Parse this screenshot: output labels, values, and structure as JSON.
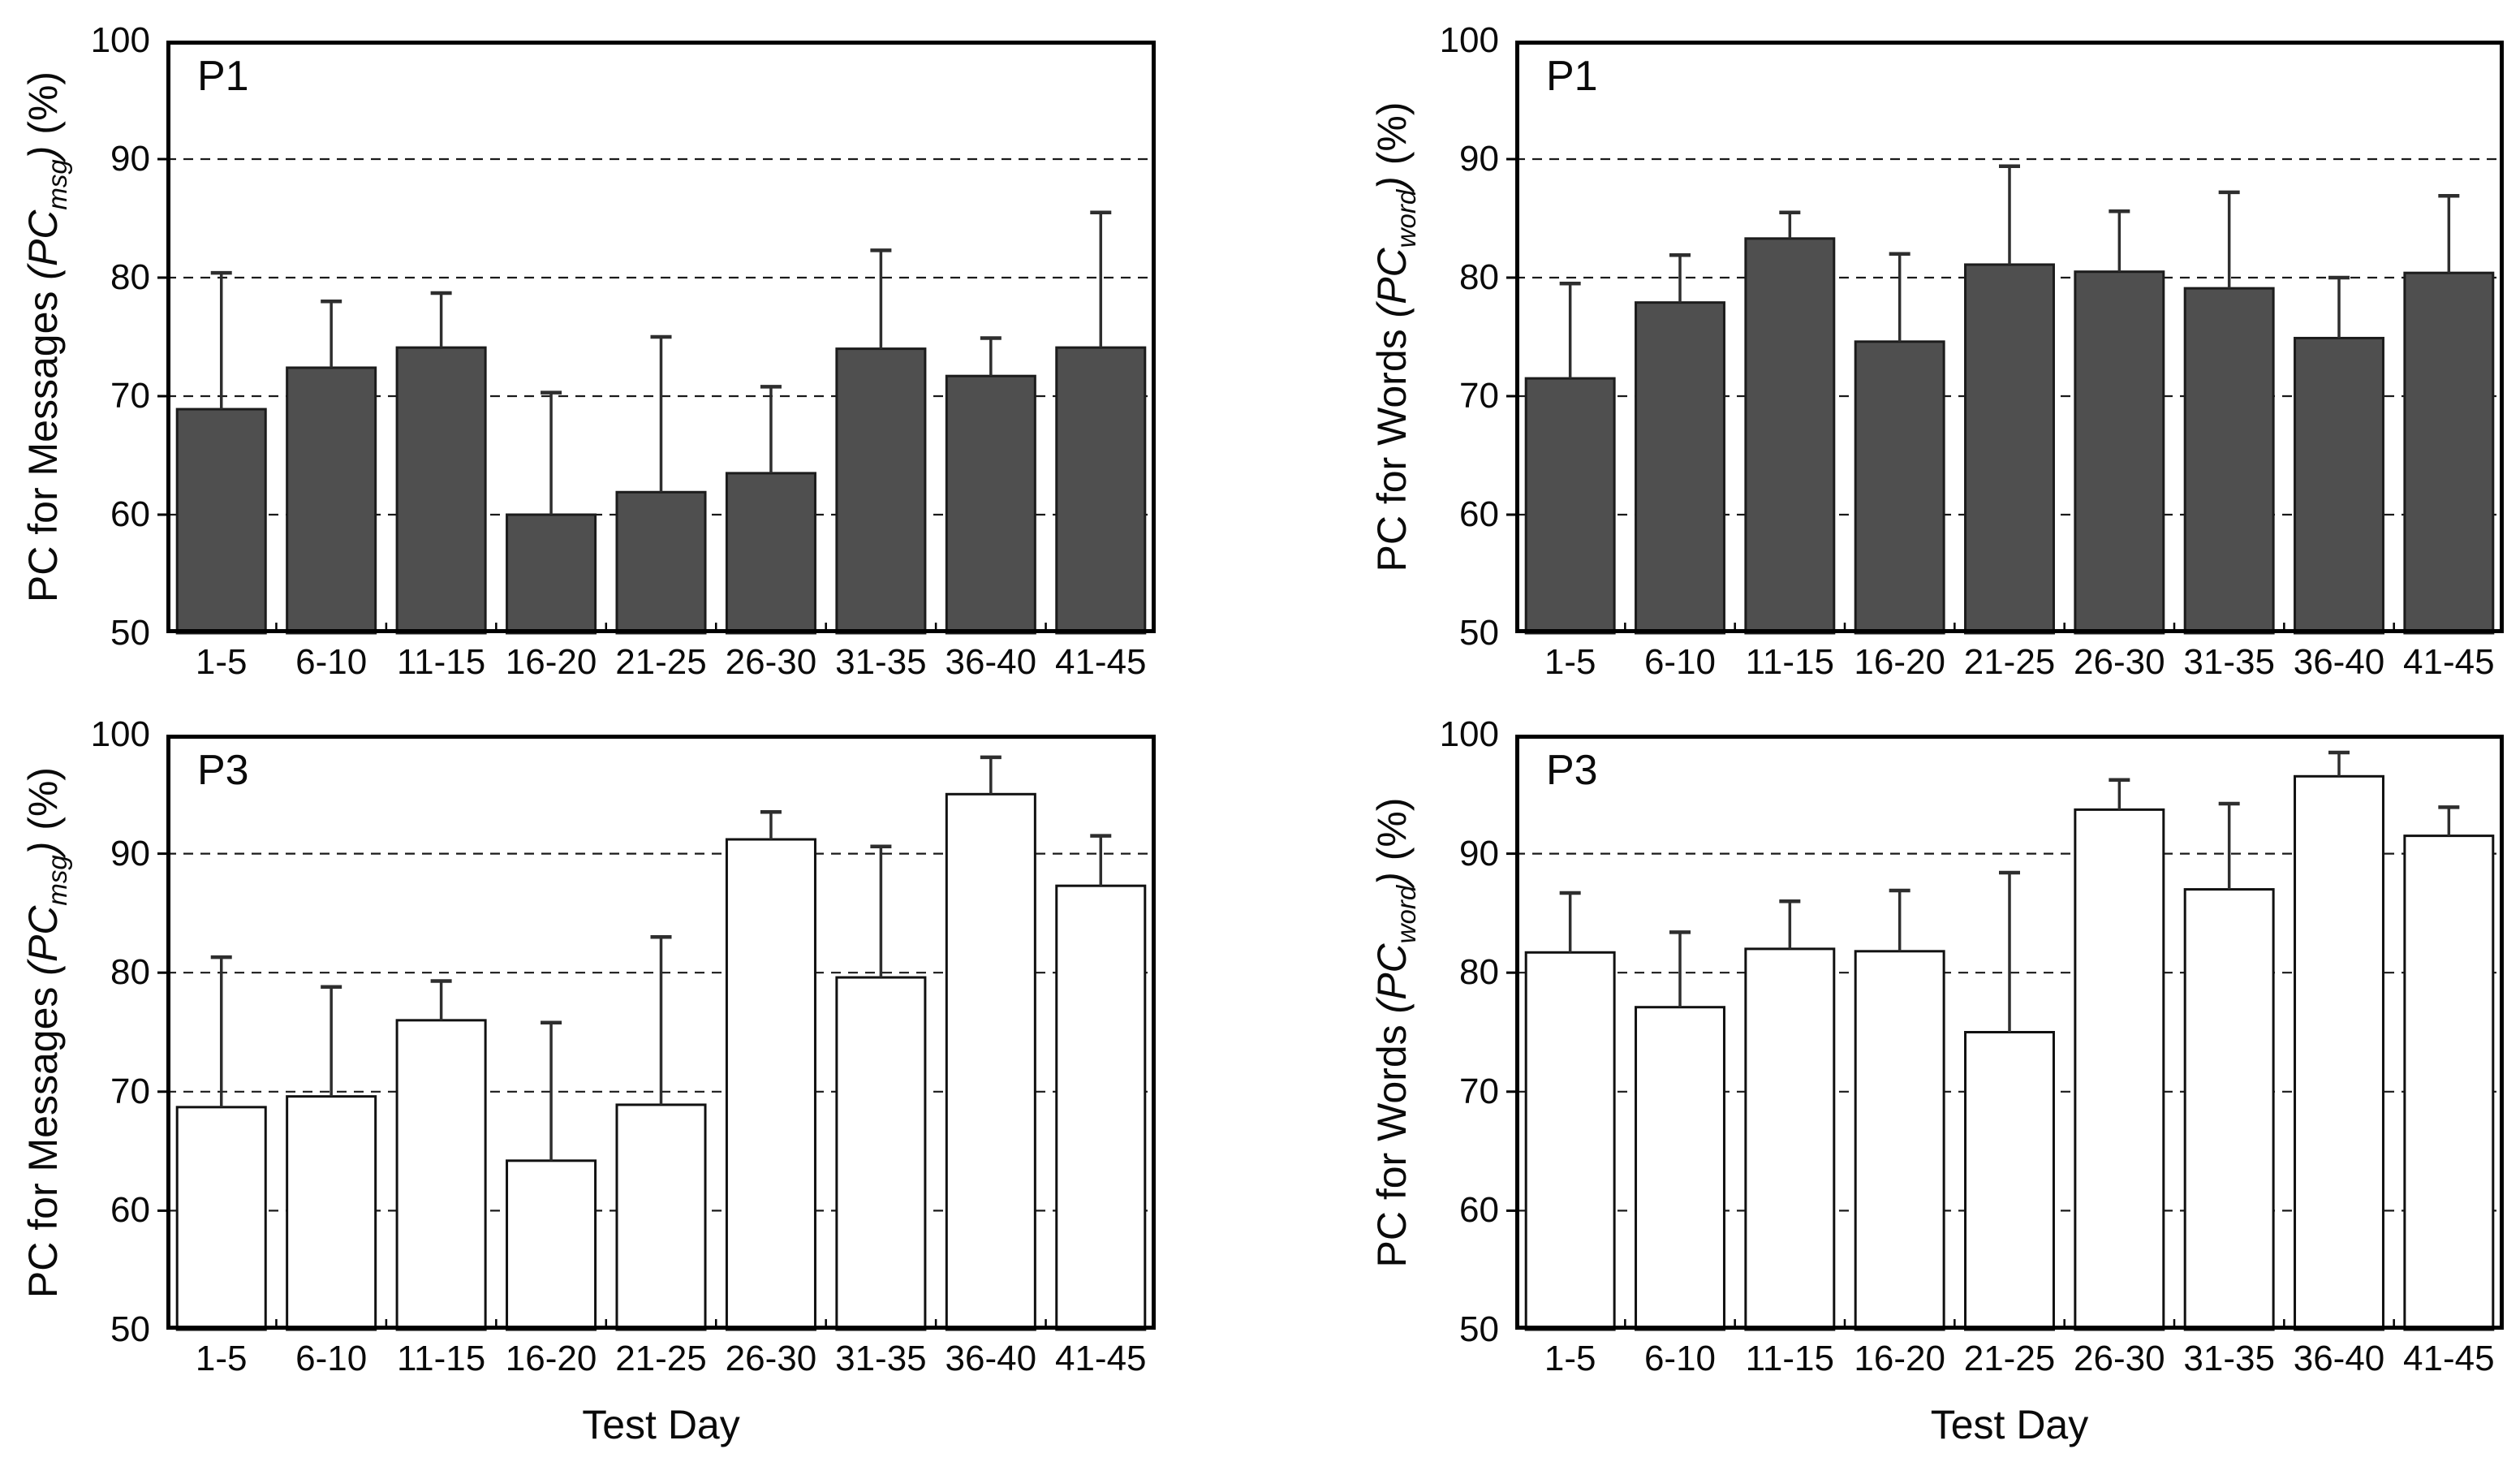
{
  "figure": {
    "background": "#ffffff",
    "text_color": "#000000"
  },
  "chart_data": [
    {
      "type": "bar",
      "panel_label": "P1",
      "ylabel": {
        "prefix": "PC for Messages ",
        "math_open": "(PC",
        "sub": "msg",
        "math_close": ")",
        "suffix": " (%)"
      },
      "xlabel": "",
      "categories": [
        "1-5",
        "6-10",
        "11-15",
        "16-20",
        "21-25",
        "26-30",
        "31-35",
        "36-40",
        "41-45"
      ],
      "values": [
        68.9,
        72.4,
        74.1,
        60.0,
        61.9,
        63.5,
        74.0,
        71.7,
        74.1
      ],
      "err_up": [
        11.5,
        5.6,
        4.6,
        10.3,
        13.1,
        7.3,
        8.3,
        3.2,
        11.4
      ],
      "axes": {
        "y_min": 50,
        "y_max": 100,
        "y_ticks": [
          100,
          90,
          80,
          70,
          60,
          50
        ],
        "gridlines": [
          90,
          80,
          70,
          60
        ],
        "grid_style": "dashed",
        "legend": "none"
      },
      "style": {
        "bar_fill": "#4f4f4f",
        "bar_stroke": "#1c1c1c",
        "err_color": "#2e2e2e",
        "grid_color": "#1a1a1a",
        "frame_color": "#000000",
        "bar_width_frac": 0.805
      }
    },
    {
      "type": "bar",
      "panel_label": "P1",
      "ylabel": {
        "prefix": "PC for Words ",
        "math_open": "(PC",
        "sub": "word",
        "math_close": ")",
        "suffix": " (%)"
      },
      "xlabel": "",
      "categories": [
        "1-5",
        "6-10",
        "11-15",
        "16-20",
        "21-25",
        "26-30",
        "31-35",
        "36-40",
        "41-45"
      ],
      "values": [
        71.5,
        77.9,
        83.3,
        74.6,
        81.1,
        80.5,
        79.1,
        74.9,
        80.4
      ],
      "err_up": [
        8.0,
        4.0,
        2.2,
        7.4,
        8.3,
        5.1,
        8.1,
        5.1,
        6.5
      ],
      "axes": {
        "y_min": 50,
        "y_max": 100,
        "y_ticks": [
          100,
          90,
          80,
          70,
          60,
          50
        ],
        "gridlines": [
          90,
          80,
          70,
          60
        ],
        "grid_style": "dashed",
        "legend": "none"
      },
      "style": {
        "bar_fill": "#4f4f4f",
        "bar_stroke": "#1c1c1c",
        "err_color": "#2e2e2e",
        "grid_color": "#1a1a1a",
        "frame_color": "#000000",
        "bar_width_frac": 0.805
      }
    },
    {
      "type": "bar",
      "panel_label": "P3",
      "ylabel": {
        "prefix": "PC for Messages ",
        "math_open": "(PC",
        "sub": "msg",
        "math_close": ")",
        "suffix": " (%)"
      },
      "xlabel": "Test Day",
      "categories": [
        "1-5",
        "6-10",
        "11-15",
        "16-20",
        "21-25",
        "26-30",
        "31-35",
        "36-40",
        "41-45"
      ],
      "values": [
        68.7,
        69.6,
        76.0,
        64.2,
        68.9,
        91.2,
        79.6,
        95.0,
        87.3
      ],
      "err_up": [
        12.6,
        9.2,
        3.3,
        11.6,
        14.1,
        2.3,
        11.0,
        3.1,
        4.2
      ],
      "axes": {
        "y_min": 50,
        "y_max": 100,
        "y_ticks": [
          100,
          90,
          80,
          70,
          60,
          50
        ],
        "gridlines": [
          90,
          80,
          70,
          60
        ],
        "grid_style": "dashed",
        "legend": "none"
      },
      "style": {
        "bar_fill": "#ffffff",
        "bar_stroke": "#111111",
        "err_color": "#2e2e2e",
        "grid_color": "#1a1a1a",
        "frame_color": "#000000",
        "bar_width_frac": 0.805
      }
    },
    {
      "type": "bar",
      "panel_label": "P3",
      "ylabel": {
        "prefix": "PC for Words ",
        "math_open": "(PC",
        "sub": "word",
        "math_close": ")",
        "suffix": " (%)"
      },
      "xlabel": "Test Day",
      "categories": [
        "1-5",
        "6-10",
        "11-15",
        "16-20",
        "21-25",
        "26-30",
        "31-35",
        "36-40",
        "41-45"
      ],
      "values": [
        81.7,
        77.1,
        82.0,
        81.8,
        75.0,
        93.7,
        87.0,
        96.5,
        91.5
      ],
      "err_up": [
        5.0,
        6.3,
        4.0,
        5.1,
        13.4,
        2.5,
        7.2,
        2.0,
        2.4
      ],
      "axes": {
        "y_min": 50,
        "y_max": 100,
        "y_ticks": [
          100,
          90,
          80,
          70,
          60,
          50
        ],
        "gridlines": [
          90,
          80,
          70,
          60
        ],
        "grid_style": "dashed",
        "legend": "none"
      },
      "style": {
        "bar_fill": "#ffffff",
        "bar_stroke": "#111111",
        "err_color": "#2e2e2e",
        "grid_color": "#1a1a1a",
        "frame_color": "#000000",
        "bar_width_frac": 0.805
      }
    }
  ]
}
